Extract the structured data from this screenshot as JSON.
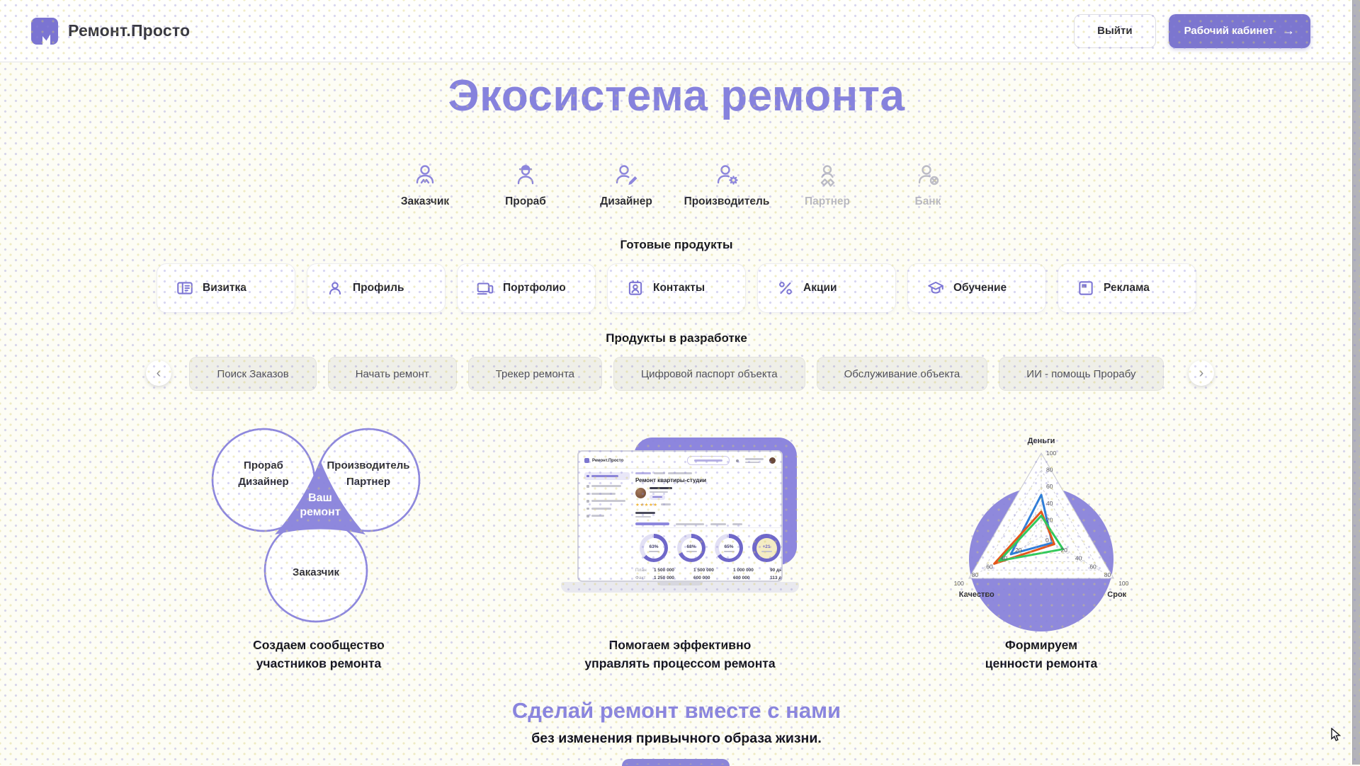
{
  "header": {
    "brand": "Ремонт.Просто",
    "logout": "Выйти",
    "cabinet": "Рабочий кабинет",
    "cabinet_arrow": "→"
  },
  "hero": {
    "title": "Экосистема ремонта"
  },
  "roles": [
    {
      "label": "Заказчик",
      "icon": "person-icon",
      "active": true
    },
    {
      "label": "Прораб",
      "icon": "builder-icon",
      "active": true
    },
    {
      "label": "Дизайнер",
      "icon": "designer-icon",
      "active": true
    },
    {
      "label": "Производитель",
      "icon": "manufacturer-icon",
      "active": true
    },
    {
      "label": "Партнер",
      "icon": "partner-icon",
      "active": false
    },
    {
      "label": "Банк",
      "icon": "bank-icon",
      "active": false
    }
  ],
  "ready_products": {
    "heading": "Готовые продукты",
    "items": [
      {
        "label": "Визитка",
        "icon": "business-card-icon"
      },
      {
        "label": "Профиль",
        "icon": "profile-icon"
      },
      {
        "label": "Портфолио",
        "icon": "portfolio-icon"
      },
      {
        "label": "Контакты",
        "icon": "contacts-icon"
      },
      {
        "label": "Акции",
        "icon": "percent-icon"
      },
      {
        "label": "Обучение",
        "icon": "education-icon"
      },
      {
        "label": "Реклама",
        "icon": "ads-icon"
      }
    ]
  },
  "dev_products": {
    "heading": "Продукты в разработке",
    "prev": "‹",
    "next": "›",
    "items": [
      "Поиск Заказов",
      "Начать ремонт",
      "Трекер ремонта",
      "Цифровой паспорт объекта",
      "Обслуживание объекта",
      "ИИ - помощь Прорабу"
    ]
  },
  "venn": {
    "circle1_line1": "Прораб",
    "circle1_line2": "Дизайнер",
    "circle2_line1": "Производитель",
    "circle2_line2": "Партнер",
    "circle3": "Заказчик",
    "center_line1": "Ваш",
    "center_line2": "ремонт"
  },
  "laptop": {
    "brand": "Ремонт.Просто",
    "screen_title": "Ремонт квартиры-студии",
    "stars": "★★★★★",
    "donuts": [
      {
        "value": "63%",
        "pct": 63,
        "highlight": false
      },
      {
        "value": "68%",
        "pct": 68,
        "highlight": false
      },
      {
        "value": "65%",
        "pct": 65,
        "highlight": false
      },
      {
        "value": "+21",
        "pct": 100,
        "highlight": true
      }
    ],
    "table": {
      "plan": [
        "План",
        "1 500 000",
        "1 500 000",
        "1 000 000",
        "90 дней"
      ],
      "fact": [
        "Факт",
        "1 250 000",
        "600 000",
        "600 000",
        "113 дней"
      ]
    }
  },
  "captions": {
    "community_line1": "Создаем сообщество",
    "community_line2": "участников ремонта",
    "manage_line1": "Помогаем эффективно",
    "manage_line2": "управлять процессом ремонта",
    "values_line1": "Формируем",
    "values_line2": "ценности ремонта"
  },
  "chart_data": {
    "type": "radar",
    "axes": [
      "Деньги",
      "Срок",
      "Качество"
    ],
    "max": 100,
    "ticks": [
      20,
      40,
      60,
      80,
      100
    ],
    "center_label": "0",
    "grid": "dashed-triangular",
    "legend": "none",
    "series": [
      {
        "name": "series-blue",
        "color": "#2e7ed8",
        "values": [
          50,
          15,
          42
        ]
      },
      {
        "name": "series-orange",
        "color": "#e4571b",
        "values": [
          30,
          18,
          65
        ]
      },
      {
        "name": "series-green",
        "color": "#31c95c",
        "values": [
          25,
          30,
          58
        ]
      }
    ]
  },
  "cta": {
    "title": "Сделай ремонт вместе с нами",
    "subtitle": "без изменения привычного образа жизни."
  },
  "colors": {
    "accent": "#7c76cf",
    "accent_light": "#8d87dd",
    "donut_ring": "#6f68c9",
    "donut_rest": "#e2e0f4",
    "donut_center": "#ffffff",
    "donut_highlight_center": "#f4ecc4",
    "donut_value": "#403f63",
    "donut_highlight_value": "#6f68c9",
    "star": "#f0b73c"
  }
}
